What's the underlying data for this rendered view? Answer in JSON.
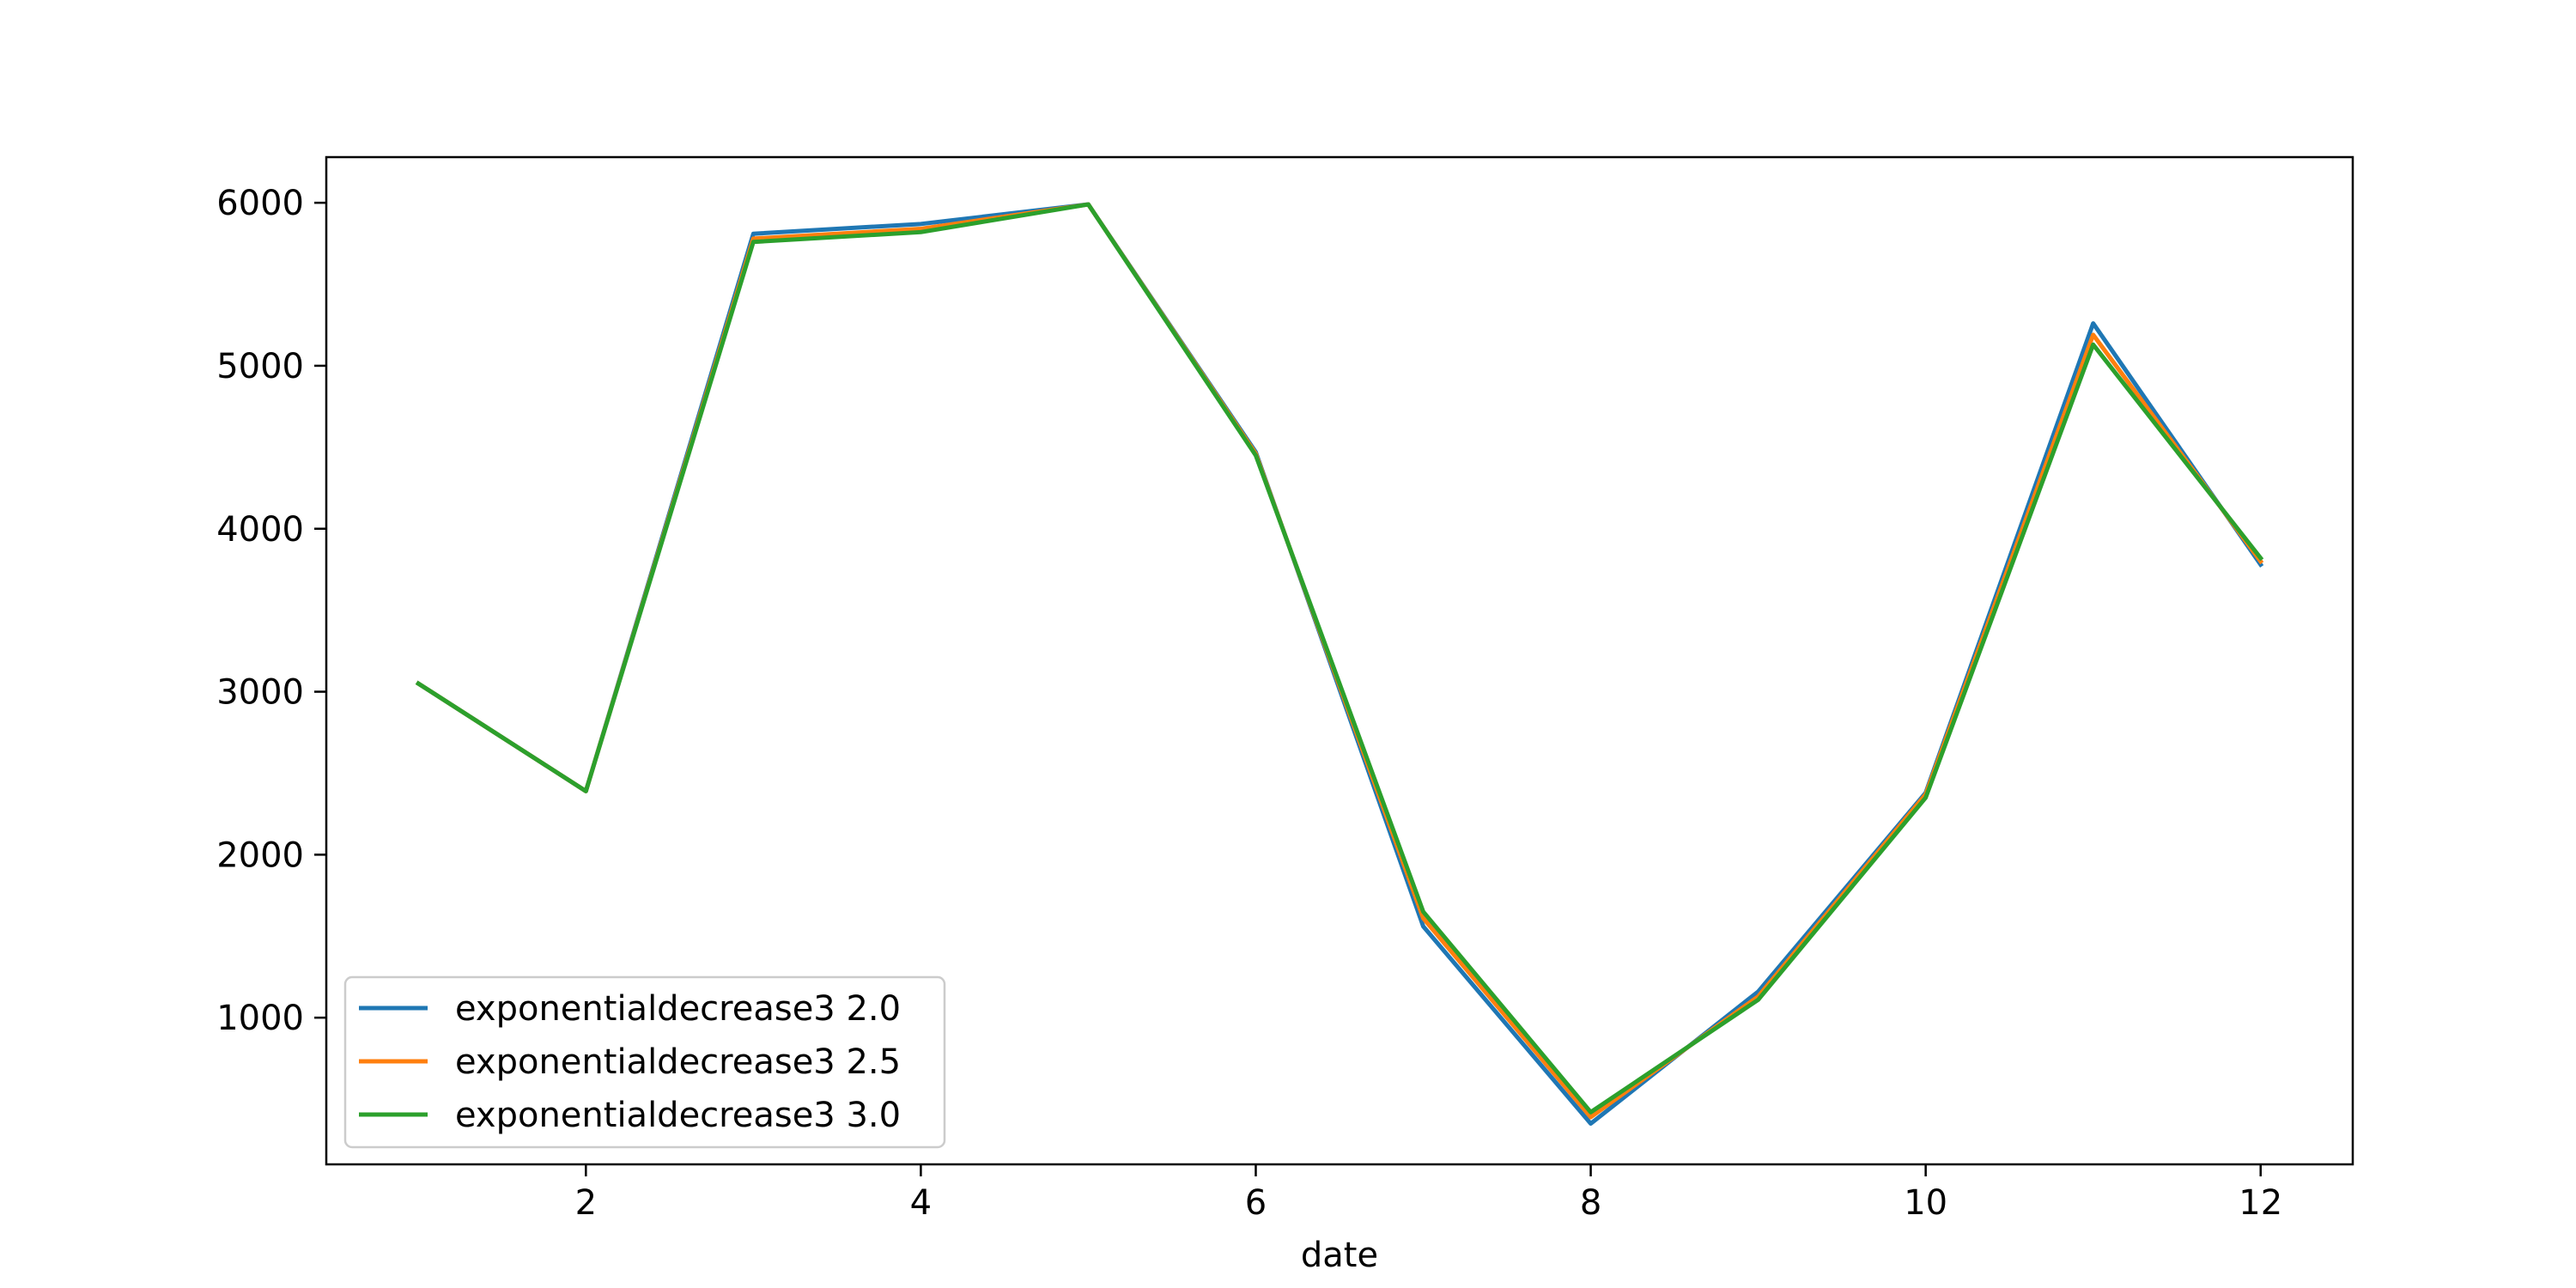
{
  "chart_data": {
    "type": "line",
    "title": "",
    "xlabel": "date",
    "ylabel": "",
    "xlim": [
      0.45,
      12.55
    ],
    "ylim": [
      100,
      6280
    ],
    "xticks": [
      2,
      4,
      6,
      8,
      10,
      12
    ],
    "yticks": [
      1000,
      2000,
      3000,
      4000,
      5000,
      6000
    ],
    "grid": false,
    "legend_position": "lower-left",
    "x": [
      1,
      2,
      3,
      4,
      5,
      6,
      7,
      8,
      9,
      10,
      11,
      12
    ],
    "series": [
      {
        "name": "exponentialdecrease3 2.0",
        "color": "#1f77b4",
        "values": [
          3050,
          2390,
          5810,
          5870,
          5990,
          4470,
          1560,
          350,
          1160,
          2380,
          5260,
          3780
        ]
      },
      {
        "name": "exponentialdecrease3 2.5",
        "color": "#ff7f0e",
        "values": [
          3050,
          2390,
          5780,
          5840,
          5990,
          4460,
          1610,
          390,
          1130,
          2370,
          5190,
          3800
        ]
      },
      {
        "name": "exponentialdecrease3 3.0",
        "color": "#2ca02c",
        "values": [
          3050,
          2390,
          5760,
          5820,
          5990,
          4450,
          1650,
          420,
          1110,
          2350,
          5130,
          3820
        ]
      }
    ]
  }
}
